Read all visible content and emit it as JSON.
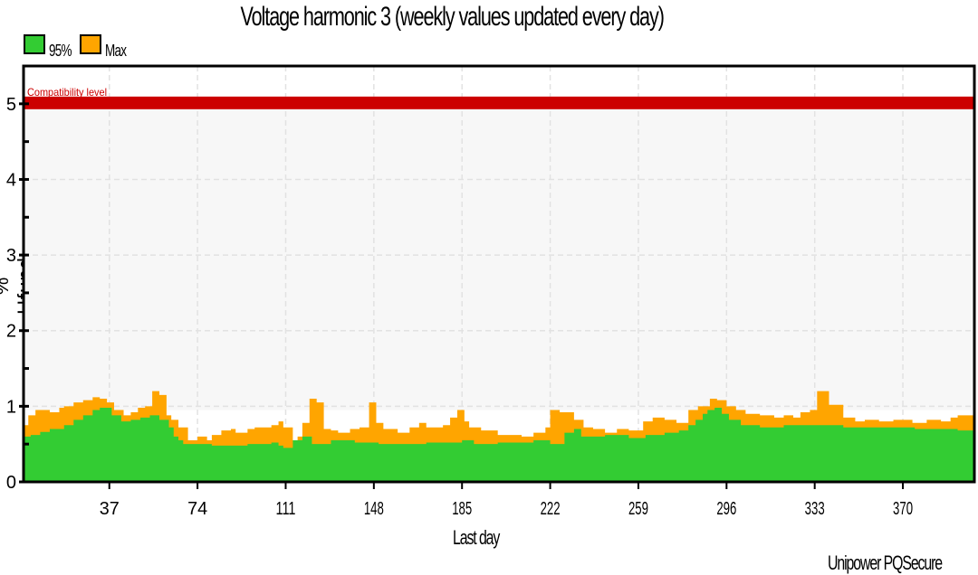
{
  "chart_data": {
    "type": "area",
    "title": "Voltage harmonic 3 (weekly values updated every day)",
    "xlabel": "Last day",
    "ylabel": "% Ufund",
    "xlim": [
      1,
      400
    ],
    "ylim": [
      0,
      5.5
    ],
    "x_ticks": [
      37,
      74,
      111,
      148,
      185,
      222,
      259,
      296,
      333,
      370
    ],
    "y_ticks": [
      0,
      1,
      2,
      3,
      4,
      5
    ],
    "grid": true,
    "legend_position": "top-left",
    "reference_line": {
      "label": "Compatibility level",
      "value": 5,
      "color": "#cc0000"
    },
    "series": [
      {
        "name": "95%",
        "color": "#33cc33",
        "steps": [
          [
            1,
            0.6
          ],
          [
            4,
            0.62
          ],
          [
            8,
            0.66
          ],
          [
            12,
            0.7
          ],
          [
            18,
            0.75
          ],
          [
            22,
            0.82
          ],
          [
            26,
            0.88
          ],
          [
            30,
            0.95
          ],
          [
            33,
            0.98
          ],
          [
            38,
            0.88
          ],
          [
            42,
            0.8
          ],
          [
            46,
            0.82
          ],
          [
            50,
            0.85
          ],
          [
            54,
            0.88
          ],
          [
            58,
            0.82
          ],
          [
            62,
            0.72
          ],
          [
            64,
            0.6
          ],
          [
            66,
            0.55
          ],
          [
            68,
            0.5
          ],
          [
            80,
            0.48
          ],
          [
            95,
            0.5
          ],
          [
            105,
            0.52
          ],
          [
            108,
            0.48
          ],
          [
            110,
            0.45
          ],
          [
            114,
            0.55
          ],
          [
            118,
            0.6
          ],
          [
            122,
            0.5
          ],
          [
            130,
            0.55
          ],
          [
            140,
            0.52
          ],
          [
            150,
            0.5
          ],
          [
            170,
            0.52
          ],
          [
            185,
            0.55
          ],
          [
            190,
            0.5
          ],
          [
            200,
            0.52
          ],
          [
            215,
            0.55
          ],
          [
            222,
            0.5
          ],
          [
            228,
            0.65
          ],
          [
            232,
            0.7
          ],
          [
            235,
            0.6
          ],
          [
            245,
            0.62
          ],
          [
            255,
            0.58
          ],
          [
            262,
            0.62
          ],
          [
            270,
            0.65
          ],
          [
            276,
            0.68
          ],
          [
            280,
            0.75
          ],
          [
            283,
            0.82
          ],
          [
            286,
            0.9
          ],
          [
            288,
            0.95
          ],
          [
            291,
            0.98
          ],
          [
            294,
            0.9
          ],
          [
            297,
            0.82
          ],
          [
            302,
            0.75
          ],
          [
            310,
            0.72
          ],
          [
            320,
            0.75
          ],
          [
            330,
            0.75
          ],
          [
            345,
            0.72
          ],
          [
            360,
            0.72
          ],
          [
            375,
            0.7
          ],
          [
            385,
            0.7
          ],
          [
            393,
            0.68
          ]
        ]
      },
      {
        "name": "Max",
        "color": "#ffa500",
        "steps": [
          [
            1,
            0.75
          ],
          [
            3,
            0.88
          ],
          [
            6,
            0.95
          ],
          [
            12,
            0.92
          ],
          [
            16,
            0.98
          ],
          [
            18,
            1.0
          ],
          [
            22,
            1.05
          ],
          [
            26,
            1.08
          ],
          [
            30,
            1.12
          ],
          [
            33,
            1.1
          ],
          [
            36,
            1.05
          ],
          [
            39,
            0.95
          ],
          [
            43,
            0.88
          ],
          [
            46,
            0.92
          ],
          [
            49,
            0.98
          ],
          [
            52,
            1.0
          ],
          [
            55,
            1.2
          ],
          [
            58,
            1.15
          ],
          [
            61,
            0.88
          ],
          [
            63,
            0.82
          ],
          [
            66,
            0.72
          ],
          [
            70,
            0.55
          ],
          [
            74,
            0.6
          ],
          [
            78,
            0.55
          ],
          [
            80,
            0.62
          ],
          [
            84,
            0.68
          ],
          [
            88,
            0.7
          ],
          [
            90,
            0.65
          ],
          [
            95,
            0.7
          ],
          [
            98,
            0.72
          ],
          [
            105,
            0.75
          ],
          [
            108,
            0.8
          ],
          [
            110,
            0.72
          ],
          [
            114,
            0.55
          ],
          [
            116,
            0.6
          ],
          [
            118,
            0.78
          ],
          [
            121,
            1.1
          ],
          [
            124,
            1.05
          ],
          [
            127,
            0.7
          ],
          [
            130,
            0.68
          ],
          [
            133,
            0.65
          ],
          [
            138,
            0.7
          ],
          [
            142,
            0.72
          ],
          [
            146,
            1.05
          ],
          [
            149,
            0.78
          ],
          [
            152,
            0.7
          ],
          [
            158,
            0.65
          ],
          [
            163,
            0.72
          ],
          [
            167,
            0.78
          ],
          [
            170,
            0.72
          ],
          [
            177,
            0.75
          ],
          [
            180,
            0.85
          ],
          [
            183,
            0.95
          ],
          [
            186,
            0.8
          ],
          [
            188,
            0.72
          ],
          [
            193,
            0.68
          ],
          [
            200,
            0.62
          ],
          [
            205,
            0.62
          ],
          [
            210,
            0.6
          ],
          [
            215,
            0.65
          ],
          [
            220,
            0.72
          ],
          [
            222,
            0.95
          ],
          [
            226,
            0.92
          ],
          [
            232,
            0.82
          ],
          [
            236,
            0.72
          ],
          [
            240,
            0.7
          ],
          [
            245,
            0.65
          ],
          [
            250,
            0.7
          ],
          [
            255,
            0.68
          ],
          [
            261,
            0.8
          ],
          [
            265,
            0.85
          ],
          [
            270,
            0.82
          ],
          [
            275,
            0.78
          ],
          [
            280,
            0.95
          ],
          [
            284,
            1.0
          ],
          [
            289,
            1.1
          ],
          [
            292,
            1.08
          ],
          [
            296,
            1.0
          ],
          [
            300,
            0.95
          ],
          [
            304,
            0.9
          ],
          [
            310,
            0.88
          ],
          [
            316,
            0.85
          ],
          [
            320,
            0.88
          ],
          [
            324,
            0.85
          ],
          [
            327,
            0.92
          ],
          [
            331,
            0.95
          ],
          [
            334,
            1.2
          ],
          [
            339,
            1.02
          ],
          [
            345,
            0.85
          ],
          [
            350,
            0.8
          ],
          [
            354,
            0.82
          ],
          [
            360,
            0.8
          ],
          [
            366,
            0.82
          ],
          [
            374,
            0.78
          ],
          [
            380,
            0.82
          ],
          [
            386,
            0.8
          ],
          [
            390,
            0.85
          ],
          [
            393,
            0.88
          ]
        ]
      }
    ],
    "credit": "Unipower PQSecure"
  }
}
